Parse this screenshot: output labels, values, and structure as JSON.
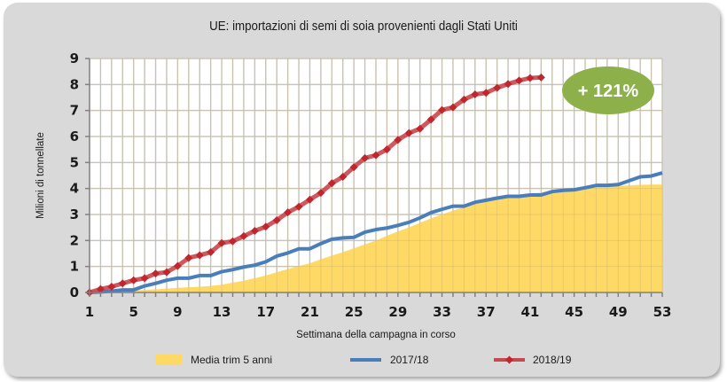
{
  "chart_data": {
    "type": "line",
    "title": "UE: importazioni di semi di soia provenienti dagli Stati Uniti",
    "xlabel": "Settimana della campagna in corso",
    "ylabel": "Milioni di tonnellate",
    "xlim": [
      1,
      53
    ],
    "ylim": [
      0,
      9
    ],
    "grid": true,
    "legend_position": "bottom",
    "x_tick_labels": [
      "1",
      "5",
      "9",
      "13",
      "17",
      "21",
      "25",
      "29",
      "33",
      "37",
      "41",
      "45",
      "49",
      "53"
    ],
    "y_tick_labels": [
      "0",
      "1",
      "2",
      "3",
      "4",
      "5",
      "6",
      "7",
      "8",
      "9"
    ],
    "annotation": "+ 121%",
    "colors": {
      "area": "#ffd966",
      "blue": "#4a7ebb",
      "red": "#c0262d",
      "badge": "#8db04a"
    },
    "series": [
      {
        "name": "Media trim 5 anni",
        "kind": "area",
        "values": [
          0,
          0.02,
          0.04,
          0.06,
          0.08,
          0.1,
          0.12,
          0.15,
          0.18,
          0.2,
          0.22,
          0.25,
          0.3,
          0.38,
          0.45,
          0.55,
          0.65,
          0.78,
          0.9,
          1.02,
          1.12,
          1.28,
          1.42,
          1.55,
          1.7,
          1.85,
          2.0,
          2.18,
          2.35,
          2.5,
          2.68,
          2.85,
          3.0,
          3.15,
          3.28,
          3.4,
          3.5,
          3.6,
          3.68,
          3.75,
          3.8,
          3.85,
          3.92,
          3.95,
          3.98,
          4.02,
          4.05,
          4.08,
          4.1,
          4.12,
          4.14,
          4.15,
          4.15
        ]
      },
      {
        "name": "2017/18",
        "kind": "line",
        "values": [
          0,
          0.02,
          0.05,
          0.1,
          0.1,
          0.25,
          0.35,
          0.47,
          0.55,
          0.55,
          0.65,
          0.65,
          0.8,
          0.88,
          0.98,
          1.05,
          1.18,
          1.4,
          1.52,
          1.68,
          1.68,
          1.88,
          2.05,
          2.1,
          2.12,
          2.32,
          2.42,
          2.48,
          2.58,
          2.7,
          2.87,
          3.07,
          3.2,
          3.32,
          3.32,
          3.47,
          3.55,
          3.63,
          3.7,
          3.7,
          3.75,
          3.75,
          3.88,
          3.93,
          3.95,
          4.03,
          4.12,
          4.12,
          4.15,
          4.3,
          4.45,
          4.48,
          4.6
        ]
      },
      {
        "name": "2018/19",
        "kind": "line-markers",
        "values": [
          0,
          0.13,
          0.22,
          0.35,
          0.47,
          0.55,
          0.73,
          0.78,
          1.02,
          1.33,
          1.43,
          1.55,
          1.9,
          1.97,
          2.17,
          2.37,
          2.53,
          2.78,
          3.08,
          3.3,
          3.57,
          3.83,
          4.2,
          4.45,
          4.82,
          5.17,
          5.28,
          5.5,
          5.87,
          6.13,
          6.3,
          6.65,
          7.02,
          7.12,
          7.42,
          7.62,
          7.68,
          7.87,
          8.02,
          8.15,
          8.25,
          8.27
        ]
      }
    ]
  }
}
